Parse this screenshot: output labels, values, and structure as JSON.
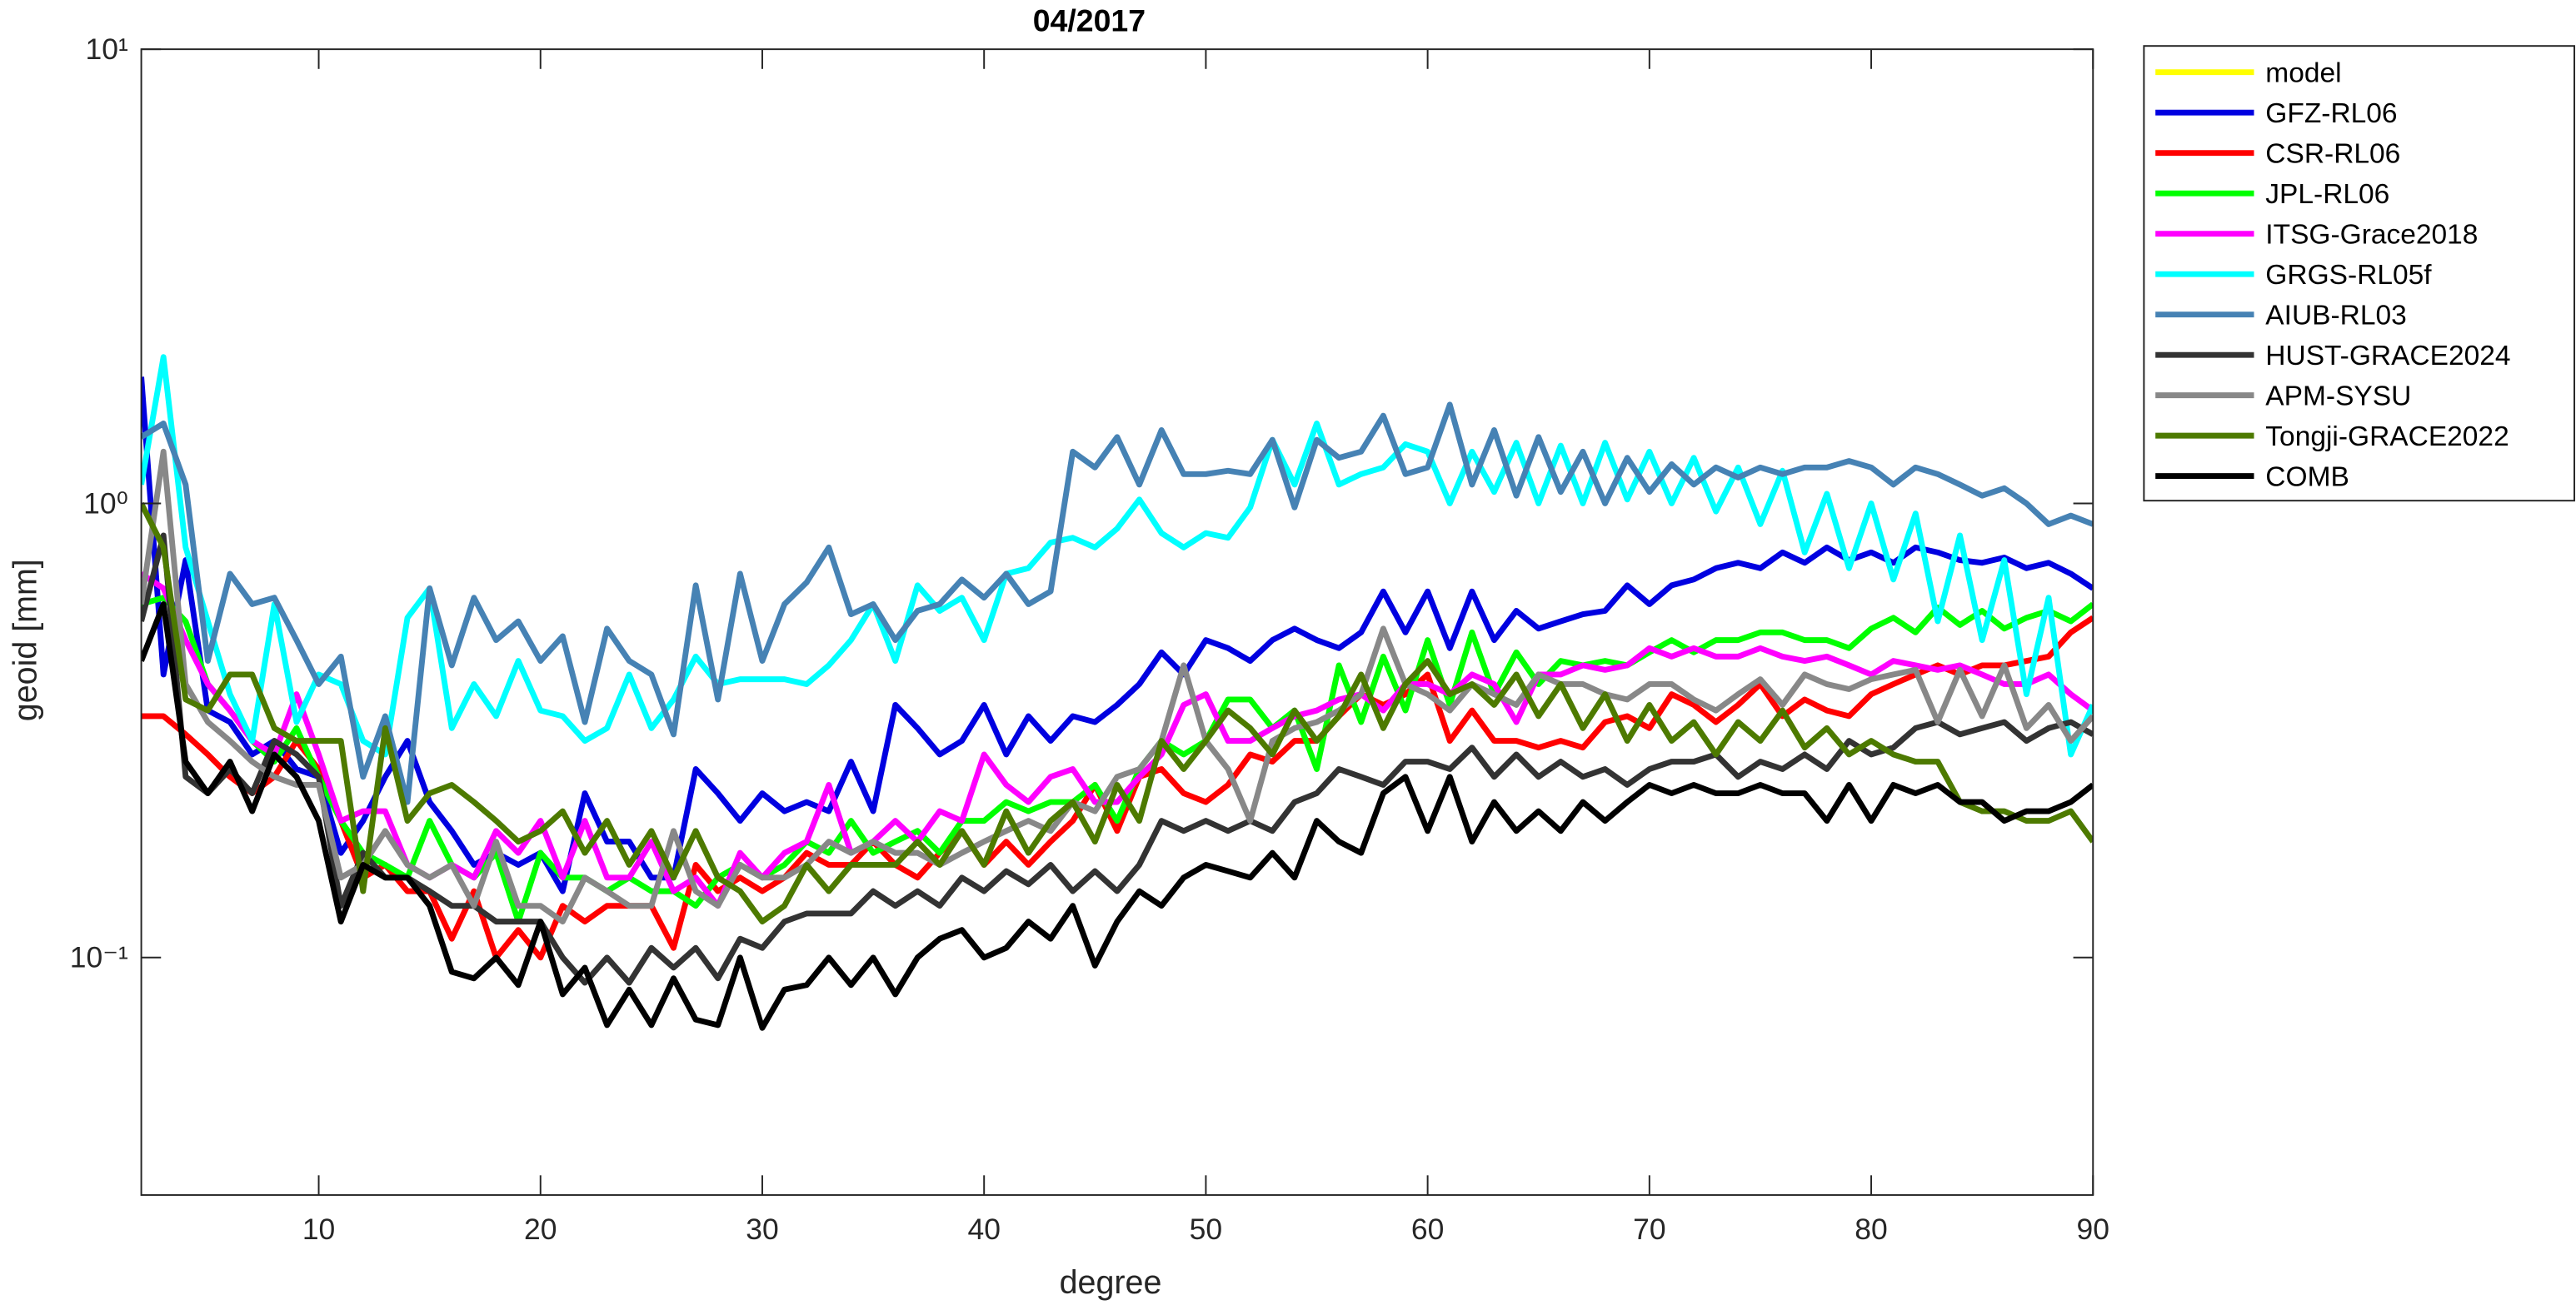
{
  "chart_data": {
    "type": "line",
    "title": "04/2017",
    "xlabel": "degree",
    "ylabel": "geoid [mm]",
    "yscale": "log",
    "xlim": [
      2,
      90
    ],
    "ylim": [
      0.03,
      10
    ],
    "xticks": [
      10,
      20,
      30,
      40,
      50,
      60,
      70,
      80,
      90
    ],
    "yticks": [
      {
        "value": 0.1,
        "label": "10⁻¹"
      },
      {
        "value": 1,
        "label": "10⁰"
      },
      {
        "value": 10,
        "label": "10¹"
      }
    ],
    "legend": "outside-right-top",
    "x": [
      2,
      3,
      4,
      5,
      6,
      7,
      8,
      9,
      10,
      11,
      12,
      13,
      14,
      15,
      16,
      17,
      18,
      19,
      20,
      21,
      22,
      23,
      24,
      25,
      26,
      27,
      28,
      29,
      30,
      31,
      32,
      33,
      34,
      35,
      36,
      37,
      38,
      39,
      40,
      41,
      42,
      43,
      44,
      45,
      46,
      47,
      48,
      49,
      50,
      51,
      52,
      53,
      54,
      55,
      56,
      57,
      58,
      59,
      60,
      61,
      62,
      63,
      64,
      65,
      66,
      67,
      68,
      69,
      70,
      71,
      72,
      73,
      74,
      75,
      76,
      77,
      78,
      79,
      80,
      81,
      82,
      83,
      84,
      85,
      86,
      87,
      88,
      89,
      90
    ],
    "series": [
      {
        "name": "model",
        "color": "#ffff00",
        "values": [
          null,
          null,
          null,
          null,
          null,
          null,
          null,
          null,
          null,
          null,
          null,
          null,
          null,
          null,
          null,
          null,
          null,
          null,
          null,
          null,
          null,
          null,
          null,
          null,
          null,
          null,
          null,
          null,
          null,
          null,
          null,
          null,
          null,
          null,
          null,
          null,
          null,
          null,
          null,
          null,
          null,
          null,
          null,
          null,
          null,
          null,
          null,
          null,
          null,
          null,
          null,
          null,
          null,
          null,
          null,
          null,
          null,
          null,
          null,
          null,
          null,
          null,
          null,
          null,
          null,
          null,
          null,
          null,
          null,
          null,
          null,
          null,
          null,
          null,
          null,
          null,
          null,
          null,
          null,
          null,
          null,
          null,
          null,
          null,
          null,
          null,
          null,
          null,
          null
        ]
      },
      {
        "name": "GFZ-RL06",
        "color": "#0000e0",
        "values": [
          1.9,
          0.42,
          0.75,
          0.35,
          0.33,
          0.28,
          0.3,
          0.26,
          0.25,
          0.17,
          0.2,
          0.25,
          0.3,
          0.22,
          0.19,
          0.16,
          0.17,
          0.16,
          0.17,
          0.14,
          0.23,
          0.18,
          0.18,
          0.15,
          0.15,
          0.26,
          0.23,
          0.2,
          0.23,
          0.21,
          0.22,
          0.21,
          0.27,
          0.21,
          0.36,
          0.32,
          0.28,
          0.3,
          0.36,
          0.28,
          0.34,
          0.3,
          0.34,
          0.33,
          0.36,
          0.4,
          0.47,
          0.42,
          0.5,
          0.48,
          0.45,
          0.5,
          0.53,
          0.5,
          0.48,
          0.52,
          0.64,
          0.52,
          0.64,
          0.48,
          0.64,
          0.5,
          0.58,
          0.53,
          0.55,
          0.57,
          0.58,
          0.66,
          0.6,
          0.66,
          0.68,
          0.72,
          0.74,
          0.72,
          0.78,
          0.74,
          0.8,
          0.75,
          0.78,
          0.74,
          0.8,
          0.78,
          0.75,
          0.74,
          0.76,
          0.72,
          0.74,
          0.7,
          0.65
        ]
      },
      {
        "name": "CSR-RL06",
        "color": "#ff0000",
        "values": [
          0.34,
          0.34,
          0.31,
          0.28,
          0.25,
          0.23,
          0.25,
          0.3,
          0.26,
          0.2,
          0.15,
          0.16,
          0.14,
          0.14,
          0.11,
          0.14,
          0.1,
          0.115,
          0.1,
          0.13,
          0.12,
          0.13,
          0.13,
          0.13,
          0.105,
          0.16,
          0.14,
          0.15,
          0.14,
          0.15,
          0.17,
          0.16,
          0.16,
          0.18,
          0.16,
          0.15,
          0.17,
          0.19,
          0.16,
          0.18,
          0.16,
          0.18,
          0.2,
          0.24,
          0.19,
          0.25,
          0.26,
          0.23,
          0.22,
          0.24,
          0.28,
          0.27,
          0.3,
          0.3,
          0.34,
          0.38,
          0.36,
          0.38,
          0.42,
          0.3,
          0.35,
          0.3,
          0.3,
          0.29,
          0.3,
          0.29,
          0.33,
          0.34,
          0.32,
          0.38,
          0.36,
          0.33,
          0.36,
          0.4,
          0.34,
          0.37,
          0.35,
          0.34,
          0.38,
          0.4,
          0.42,
          0.44,
          0.42,
          0.44,
          0.44,
          0.45,
          0.46,
          0.52,
          0.56
        ]
      },
      {
        "name": "JPL-RL06",
        "color": "#00ff00",
        "values": [
          0.6,
          0.62,
          0.55,
          0.4,
          0.35,
          0.3,
          0.27,
          0.32,
          0.25,
          0.2,
          0.17,
          0.16,
          0.15,
          0.2,
          0.16,
          0.15,
          0.17,
          0.12,
          0.17,
          0.15,
          0.15,
          0.14,
          0.15,
          0.14,
          0.14,
          0.13,
          0.15,
          0.16,
          0.15,
          0.16,
          0.18,
          0.17,
          0.2,
          0.17,
          0.18,
          0.19,
          0.17,
          0.2,
          0.2,
          0.22,
          0.21,
          0.22,
          0.22,
          0.24,
          0.2,
          0.26,
          0.3,
          0.28,
          0.3,
          0.37,
          0.37,
          0.32,
          0.35,
          0.26,
          0.44,
          0.33,
          0.46,
          0.35,
          0.5,
          0.36,
          0.52,
          0.38,
          0.47,
          0.4,
          0.45,
          0.44,
          0.45,
          0.44,
          0.47,
          0.5,
          0.47,
          0.5,
          0.5,
          0.52,
          0.52,
          0.5,
          0.5,
          0.48,
          0.53,
          0.56,
          0.52,
          0.59,
          0.54,
          0.58,
          0.53,
          0.56,
          0.58,
          0.55,
          0.6
        ]
      },
      {
        "name": "ITSG-Grace2018",
        "color": "#ff00ff",
        "values": [
          0.7,
          0.65,
          0.5,
          0.4,
          0.35,
          0.3,
          0.28,
          0.38,
          0.28,
          0.2,
          0.21,
          0.21,
          0.16,
          0.15,
          0.16,
          0.15,
          0.19,
          0.17,
          0.2,
          0.15,
          0.2,
          0.15,
          0.15,
          0.18,
          0.14,
          0.15,
          0.13,
          0.17,
          0.15,
          0.17,
          0.18,
          0.24,
          0.17,
          0.18,
          0.2,
          0.18,
          0.21,
          0.2,
          0.28,
          0.24,
          0.22,
          0.25,
          0.26,
          0.22,
          0.22,
          0.25,
          0.28,
          0.36,
          0.38,
          0.3,
          0.3,
          0.32,
          0.34,
          0.35,
          0.37,
          0.38,
          0.35,
          0.4,
          0.4,
          0.38,
          0.42,
          0.4,
          0.33,
          0.42,
          0.42,
          0.44,
          0.43,
          0.44,
          0.48,
          0.46,
          0.48,
          0.46,
          0.46,
          0.48,
          0.46,
          0.45,
          0.46,
          0.44,
          0.42,
          0.45,
          0.44,
          0.43,
          0.44,
          0.42,
          0.4,
          0.4,
          0.42,
          0.38,
          0.35
        ]
      },
      {
        "name": "GRGS-RL05f",
        "color": "#00ffff",
        "values": [
          1.1,
          2.1,
          0.8,
          0.55,
          0.38,
          0.3,
          0.6,
          0.33,
          0.42,
          0.4,
          0.3,
          0.28,
          0.56,
          0.65,
          0.32,
          0.4,
          0.34,
          0.45,
          0.35,
          0.34,
          0.3,
          0.32,
          0.42,
          0.32,
          0.37,
          0.46,
          0.4,
          0.41,
          0.41,
          0.41,
          0.4,
          0.44,
          0.5,
          0.6,
          0.45,
          0.66,
          0.58,
          0.62,
          0.5,
          0.7,
          0.72,
          0.82,
          0.84,
          0.8,
          0.88,
          1.02,
          0.86,
          0.8,
          0.86,
          0.84,
          0.98,
          1.38,
          1.1,
          1.5,
          1.1,
          1.16,
          1.2,
          1.35,
          1.3,
          1.0,
          1.3,
          1.06,
          1.36,
          1.0,
          1.34,
          1.0,
          1.36,
          1.02,
          1.3,
          1.0,
          1.26,
          0.96,
          1.2,
          0.9,
          1.18,
          0.78,
          1.05,
          0.72,
          1.0,
          0.68,
          0.95,
          0.55,
          0.85,
          0.5,
          0.75,
          0.38,
          0.62,
          0.28,
          0.36
        ]
      },
      {
        "name": "AIUB-RL03",
        "color": "#4682b4",
        "values": [
          1.4,
          1.5,
          1.1,
          0.45,
          0.7,
          0.6,
          0.62,
          0.5,
          0.4,
          0.46,
          0.25,
          0.34,
          0.22,
          0.65,
          0.44,
          0.62,
          0.5,
          0.55,
          0.45,
          0.51,
          0.33,
          0.53,
          0.45,
          0.42,
          0.31,
          0.66,
          0.37,
          0.7,
          0.45,
          0.6,
          0.67,
          0.8,
          0.57,
          0.6,
          0.5,
          0.58,
          0.6,
          0.68,
          0.62,
          0.7,
          0.6,
          0.64,
          1.3,
          1.2,
          1.4,
          1.1,
          1.45,
          1.16,
          1.16,
          1.18,
          1.16,
          1.38,
          0.98,
          1.38,
          1.26,
          1.3,
          1.56,
          1.16,
          1.2,
          1.65,
          1.1,
          1.45,
          1.04,
          1.4,
          1.06,
          1.3,
          1.0,
          1.26,
          1.06,
          1.22,
          1.1,
          1.2,
          1.14,
          1.2,
          1.16,
          1.2,
          1.2,
          1.24,
          1.2,
          1.1,
          1.2,
          1.16,
          1.1,
          1.04,
          1.08,
          1.0,
          0.9,
          0.94,
          0.9
        ]
      },
      {
        "name": "HUST-GRACE2024",
        "color": "#333333",
        "values": [
          0.55,
          0.85,
          0.25,
          0.23,
          0.26,
          0.23,
          0.3,
          0.28,
          0.25,
          0.13,
          0.17,
          0.15,
          0.15,
          0.14,
          0.13,
          0.13,
          0.12,
          0.12,
          0.12,
          0.1,
          0.088,
          0.1,
          0.088,
          0.105,
          0.095,
          0.105,
          0.09,
          0.11,
          0.105,
          0.12,
          0.125,
          0.125,
          0.125,
          0.14,
          0.13,
          0.14,
          0.13,
          0.15,
          0.14,
          0.155,
          0.145,
          0.16,
          0.14,
          0.155,
          0.14,
          0.16,
          0.2,
          0.19,
          0.2,
          0.19,
          0.2,
          0.19,
          0.22,
          0.23,
          0.26,
          0.25,
          0.24,
          0.27,
          0.27,
          0.26,
          0.29,
          0.25,
          0.28,
          0.25,
          0.27,
          0.25,
          0.26,
          0.24,
          0.26,
          0.27,
          0.27,
          0.28,
          0.25,
          0.27,
          0.26,
          0.28,
          0.26,
          0.3,
          0.28,
          0.29,
          0.32,
          0.33,
          0.31,
          0.32,
          0.33,
          0.3,
          0.32,
          0.33,
          0.31
        ]
      },
      {
        "name": "APM-SYSU",
        "color": "#888888",
        "values": [
          0.6,
          1.3,
          0.4,
          0.33,
          0.3,
          0.27,
          0.25,
          0.24,
          0.24,
          0.15,
          0.16,
          0.19,
          0.16,
          0.15,
          0.16,
          0.13,
          0.18,
          0.13,
          0.13,
          0.12,
          0.15,
          0.14,
          0.13,
          0.13,
          0.19,
          0.14,
          0.13,
          0.16,
          0.15,
          0.15,
          0.16,
          0.18,
          0.17,
          0.18,
          0.17,
          0.17,
          0.16,
          0.17,
          0.18,
          0.19,
          0.2,
          0.19,
          0.22,
          0.21,
          0.25,
          0.26,
          0.3,
          0.44,
          0.3,
          0.26,
          0.2,
          0.3,
          0.32,
          0.33,
          0.35,
          0.38,
          0.53,
          0.4,
          0.38,
          0.35,
          0.4,
          0.38,
          0.36,
          0.42,
          0.4,
          0.4,
          0.38,
          0.37,
          0.4,
          0.4,
          0.37,
          0.35,
          0.38,
          0.41,
          0.36,
          0.42,
          0.4,
          0.39,
          0.41,
          0.42,
          0.43,
          0.33,
          0.43,
          0.34,
          0.44,
          0.32,
          0.36,
          0.3,
          0.34
        ]
      },
      {
        "name": "Tongji-GRACE2022",
        "color": "#4d7a00",
        "values": [
          1.0,
          0.8,
          0.37,
          0.35,
          0.42,
          0.42,
          0.32,
          0.3,
          0.3,
          0.3,
          0.14,
          0.32,
          0.2,
          0.23,
          0.24,
          0.22,
          0.2,
          0.18,
          0.19,
          0.21,
          0.17,
          0.2,
          0.16,
          0.19,
          0.15,
          0.19,
          0.15,
          0.14,
          0.12,
          0.13,
          0.16,
          0.14,
          0.16,
          0.16,
          0.16,
          0.18,
          0.16,
          0.19,
          0.16,
          0.21,
          0.17,
          0.2,
          0.22,
          0.18,
          0.24,
          0.2,
          0.3,
          0.26,
          0.3,
          0.35,
          0.32,
          0.28,
          0.35,
          0.3,
          0.34,
          0.42,
          0.32,
          0.4,
          0.45,
          0.38,
          0.4,
          0.36,
          0.42,
          0.34,
          0.4,
          0.32,
          0.38,
          0.3,
          0.36,
          0.3,
          0.33,
          0.28,
          0.33,
          0.3,
          0.35,
          0.29,
          0.32,
          0.28,
          0.3,
          0.28,
          0.27,
          0.27,
          0.22,
          0.21,
          0.21,
          0.2,
          0.2,
          0.21,
          0.18
        ]
      },
      {
        "name": "COMB",
        "color": "#000000",
        "values": [
          0.45,
          0.6,
          0.27,
          0.23,
          0.27,
          0.21,
          0.28,
          0.25,
          0.2,
          0.12,
          0.16,
          0.15,
          0.15,
          0.13,
          0.093,
          0.09,
          0.1,
          0.087,
          0.12,
          0.083,
          0.095,
          0.071,
          0.085,
          0.071,
          0.09,
          0.073,
          0.071,
          0.1,
          0.07,
          0.085,
          0.087,
          0.1,
          0.087,
          0.1,
          0.083,
          0.1,
          0.11,
          0.115,
          0.1,
          0.105,
          0.12,
          0.11,
          0.13,
          0.096,
          0.12,
          0.14,
          0.13,
          0.15,
          0.16,
          0.155,
          0.15,
          0.17,
          0.15,
          0.2,
          0.18,
          0.17,
          0.23,
          0.25,
          0.19,
          0.25,
          0.18,
          0.22,
          0.19,
          0.21,
          0.19,
          0.22,
          0.2,
          0.22,
          0.24,
          0.23,
          0.24,
          0.23,
          0.23,
          0.24,
          0.23,
          0.23,
          0.2,
          0.24,
          0.2,
          0.24,
          0.23,
          0.24,
          0.22,
          0.22,
          0.2,
          0.21,
          0.21,
          0.22,
          0.24
        ]
      }
    ]
  }
}
